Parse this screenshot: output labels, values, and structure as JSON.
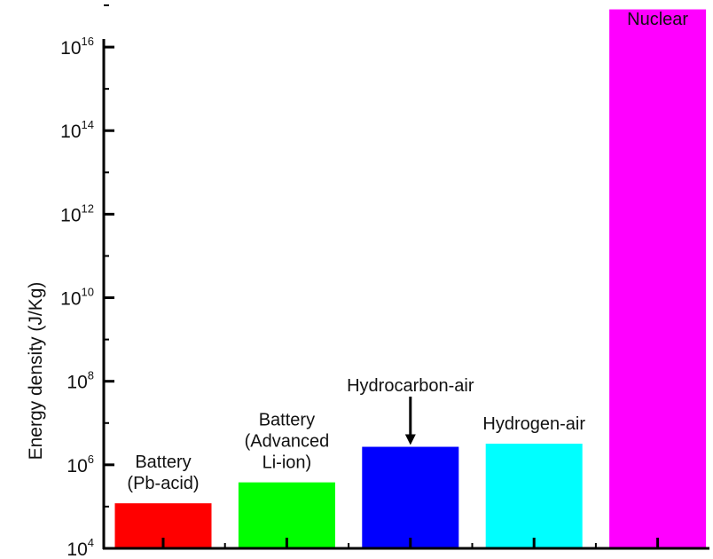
{
  "chart_data": {
    "type": "bar",
    "title": "",
    "xlabel": "",
    "ylabel": "Energy density (J/Kg)",
    "y_scale": "log",
    "ylim": [
      10000,
      100000000000000000
    ],
    "grid": false,
    "legend": "none",
    "y_ticks": [
      {
        "value": 10000,
        "base": "10",
        "exp": "4"
      },
      {
        "value": 1000000,
        "base": "10",
        "exp": "6"
      },
      {
        "value": 100000000,
        "base": "10",
        "exp": "8"
      },
      {
        "value": 10000000000,
        "base": "10",
        "exp": "10"
      },
      {
        "value": 1000000000000,
        "base": "10",
        "exp": "12"
      },
      {
        "value": 100000000000000,
        "base": "10",
        "exp": "14"
      },
      {
        "value": 10000000000000000,
        "base": "10",
        "exp": "16"
      }
    ],
    "categories": [
      {
        "label_lines": [
          "Battery",
          "(Pb-acid)"
        ],
        "value": 120000,
        "color": "#ff0000"
      },
      {
        "label_lines": [
          "Battery",
          "(Advanced",
          "Li-ion)"
        ],
        "value": 380000,
        "color": "#00ff00"
      },
      {
        "label_lines": [
          "Hydrocarbon-air"
        ],
        "value": 2700000,
        "color": "#0000ff",
        "arrow": true
      },
      {
        "label_lines": [
          "Hydrogen-air"
        ],
        "value": 3200000,
        "color": "#00ffff"
      },
      {
        "label_lines": [
          "Nuclear"
        ],
        "value": 80000000000000000,
        "color": "#ff00ff"
      }
    ]
  }
}
